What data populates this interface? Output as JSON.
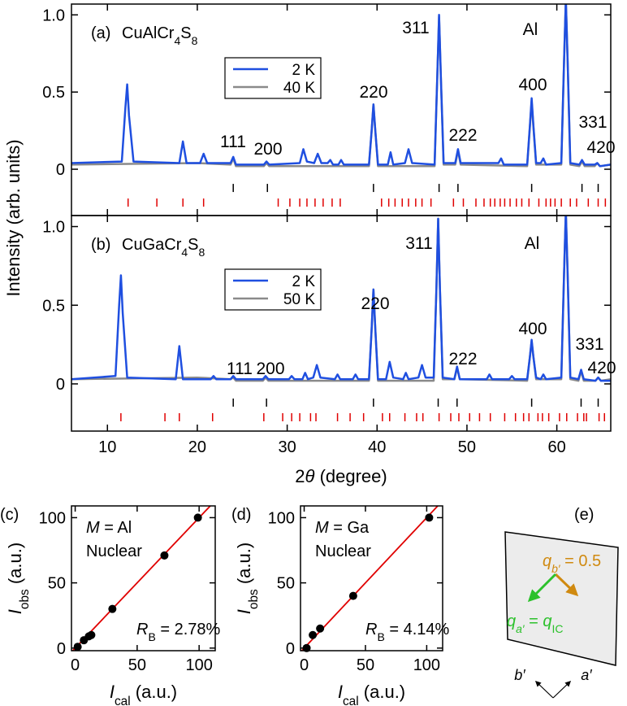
{
  "ylabel": "Intensity (arb. units)",
  "xlabel": [
    "2",
    "θ",
    " (degree)"
  ],
  "chart_data": [
    {
      "type": "spectrum",
      "panel_label": "(a)",
      "compound": [
        "CuAlCr",
        "4",
        "S",
        "8"
      ],
      "xlim": [
        6,
        66
      ],
      "xticks": [
        10,
        20,
        30,
        40,
        50,
        60
      ],
      "xtick_labels": false,
      "ylim": [
        -0.3,
        1.07
      ],
      "yticks": [
        0,
        0.5,
        {
          "value": 1,
          "label": "1.0"
        }
      ],
      "series": [
        {
          "name": "2 K",
          "color": "#1f4fe0",
          "x": [
            6,
            11.6,
            12.0,
            12.2,
            12.4,
            12.9,
            18.0,
            18.4,
            18.8,
            20.3,
            20.7,
            21.1,
            23.7,
            24.0,
            24.3,
            27.4,
            27.7,
            28.0,
            31.4,
            31.8,
            32.2,
            33.0,
            33.4,
            33.8,
            34.5,
            34.8,
            35.1,
            35.7,
            36.0,
            36.3,
            39.1,
            39.4,
            39.6,
            39.8,
            40.1,
            41.2,
            41.5,
            41.8,
            43.1,
            43.5,
            43.9,
            46.4,
            46.7,
            46.9,
            47.1,
            47.4,
            48.7,
            49.0,
            49.3,
            53.5,
            53.8,
            54.1,
            56.7,
            57.0,
            57.2,
            57.4,
            57.7,
            58.2,
            58.5,
            58.8,
            60.5,
            60.8,
            61.0,
            61.2,
            61.5,
            62.5,
            62.8,
            63.1,
            64.2,
            64.5,
            64.8,
            66
          ],
          "values": [
            0.04,
            0.05,
            0.4,
            0.55,
            0.35,
            0.05,
            0.04,
            0.18,
            0.04,
            0.04,
            0.1,
            0.04,
            0.04,
            0.08,
            0.03,
            0.03,
            0.05,
            0.03,
            0.04,
            0.13,
            0.05,
            0.04,
            0.1,
            0.04,
            0.04,
            0.06,
            0.03,
            0.03,
            0.06,
            0.03,
            0.03,
            0.25,
            0.42,
            0.25,
            0.03,
            0.03,
            0.11,
            0.03,
            0.04,
            0.13,
            0.04,
            0.03,
            0.6,
            1.0,
            0.6,
            0.04,
            0.04,
            0.13,
            0.04,
            0.04,
            0.07,
            0.03,
            0.03,
            0.28,
            0.46,
            0.28,
            0.04,
            0.04,
            0.07,
            0.03,
            0.04,
            0.7,
            1.1,
            0.7,
            0.04,
            0.03,
            0.06,
            0.03,
            0.03,
            0.04,
            0.02,
            0.03
          ]
        },
        {
          "name": "40 K",
          "color": "#8a8a8a",
          "x": [
            6,
            20,
            23.7,
            24.0,
            24.3,
            27.4,
            27.7,
            28.0,
            39.1,
            39.4,
            39.6,
            39.8,
            40.1,
            46.4,
            46.7,
            46.9,
            47.1,
            47.4,
            48.7,
            49.0,
            49.3,
            56.7,
            57.0,
            57.2,
            57.4,
            57.7,
            60.5,
            60.8,
            61.0,
            61.2,
            61.5,
            62.5,
            62.8,
            63.1,
            64.2,
            64.5,
            64.8,
            66
          ],
          "values": [
            0.03,
            0.04,
            0.03,
            0.07,
            0.02,
            0.02,
            0.04,
            0.02,
            0.02,
            0.25,
            0.42,
            0.25,
            0.02,
            0.02,
            0.6,
            0.99,
            0.6,
            0.03,
            0.03,
            0.12,
            0.03,
            0.02,
            0.27,
            0.44,
            0.27,
            0.03,
            0.03,
            0.7,
            1.1,
            0.7,
            0.03,
            0.02,
            0.05,
            0.02,
            0.02,
            0.04,
            0.02,
            0.03
          ]
        }
      ],
      "reflections": [
        {
          "color": "#000000",
          "positions": [
            24.0,
            27.8,
            39.6,
            46.9,
            49.0,
            57.2,
            62.8,
            64.6
          ]
        },
        {
          "color": "#e00000",
          "positions": [
            12.3,
            15.5,
            18.4,
            20.7,
            29.0,
            30.3,
            31.4,
            32.2,
            33.1,
            34.0,
            35.0,
            35.9,
            40.5,
            41.3,
            42.0,
            42.8,
            43.5,
            44.3,
            45.0,
            46.0,
            48.5,
            49.6,
            51.0,
            51.9,
            52.6,
            53.1,
            53.7,
            54.2,
            54.8,
            55.5,
            56.1,
            56.9,
            58.0,
            58.8,
            59.3,
            59.8,
            60.5,
            61.5,
            62.2,
            63.5,
            64.6,
            65.4
          ]
        }
      ],
      "peak_labels": [
        "311",
        "Al",
        "220",
        "400",
        "111",
        "200",
        "222",
        "331",
        "420"
      ]
    },
    {
      "type": "spectrum",
      "panel_label": "(b)",
      "compound": [
        "CuGaCr",
        "4",
        "S",
        "8"
      ],
      "xlim": [
        6,
        66
      ],
      "xticks": [
        10,
        20,
        30,
        40,
        50,
        60
      ],
      "xtick_labels": true,
      "ylim": [
        -0.3,
        1.07
      ],
      "yticks": [
        0,
        0.5,
        {
          "value": 1,
          "label": "1.0"
        }
      ],
      "series": [
        {
          "name": "2 K",
          "color": "#1f4fe0",
          "x": [
            6,
            10.9,
            11.3,
            11.5,
            11.7,
            12.2,
            17.6,
            18.0,
            18.4,
            21.5,
            21.8,
            22.1,
            23.7,
            24.0,
            24.3,
            27.3,
            27.6,
            27.9,
            30.2,
            30.5,
            30.8,
            31.7,
            32.0,
            32.3,
            32.9,
            33.3,
            33.7,
            35.3,
            35.6,
            35.9,
            37.3,
            37.6,
            37.9,
            39.1,
            39.4,
            39.6,
            39.8,
            40.1,
            41.0,
            41.4,
            41.8,
            42.9,
            43.2,
            43.5,
            44.6,
            45.0,
            45.4,
            46.3,
            46.6,
            46.8,
            47.0,
            47.3,
            48.6,
            48.9,
            49.2,
            52.2,
            52.5,
            52.8,
            54.7,
            55.0,
            55.3,
            56.7,
            57.0,
            57.2,
            57.4,
            57.7,
            58.2,
            58.5,
            58.8,
            60.5,
            60.8,
            61.0,
            61.2,
            61.5,
            62.4,
            62.7,
            63.0,
            64.3,
            64.6,
            64.9,
            66
          ],
          "values": [
            0.03,
            0.05,
            0.5,
            0.69,
            0.45,
            0.04,
            0.03,
            0.24,
            0.03,
            0.03,
            0.05,
            0.03,
            0.03,
            0.05,
            0.03,
            0.03,
            0.05,
            0.03,
            0.03,
            0.05,
            0.03,
            0.03,
            0.07,
            0.03,
            0.04,
            0.12,
            0.04,
            0.03,
            0.06,
            0.03,
            0.03,
            0.06,
            0.03,
            0.03,
            0.35,
            0.6,
            0.35,
            0.03,
            0.03,
            0.14,
            0.04,
            0.03,
            0.07,
            0.03,
            0.04,
            0.12,
            0.04,
            0.04,
            0.6,
            1.05,
            0.6,
            0.04,
            0.03,
            0.11,
            0.03,
            0.03,
            0.06,
            0.03,
            0.03,
            0.05,
            0.03,
            0.03,
            0.17,
            0.28,
            0.17,
            0.04,
            0.03,
            0.06,
            0.03,
            0.04,
            0.7,
            1.1,
            0.7,
            0.04,
            0.03,
            0.09,
            0.03,
            0.02,
            0.04,
            0.02,
            0.02
          ]
        },
        {
          "name": "50 K",
          "color": "#8a8a8a",
          "x": [
            6,
            20,
            23.7,
            24.0,
            24.3,
            27.3,
            27.6,
            27.9,
            39.1,
            39.4,
            39.6,
            39.8,
            40.1,
            46.3,
            46.6,
            46.8,
            47.0,
            47.3,
            48.6,
            48.9,
            49.2,
            56.7,
            57.0,
            57.2,
            57.4,
            57.7,
            60.5,
            60.8,
            61.0,
            61.2,
            61.5,
            62.4,
            62.7,
            63.0,
            64.3,
            64.6,
            64.9,
            66
          ],
          "values": [
            0.03,
            0.04,
            0.03,
            0.04,
            0.02,
            0.02,
            0.04,
            0.02,
            0.02,
            0.35,
            0.6,
            0.35,
            0.02,
            0.02,
            0.6,
            1.05,
            0.6,
            0.03,
            0.03,
            0.1,
            0.03,
            0.02,
            0.17,
            0.27,
            0.17,
            0.03,
            0.03,
            0.7,
            1.1,
            0.7,
            0.03,
            0.02,
            0.08,
            0.02,
            0.02,
            0.04,
            0.02,
            0.03
          ]
        }
      ],
      "reflections": [
        {
          "color": "#000000",
          "positions": [
            24.0,
            27.7,
            39.6,
            46.8,
            48.9,
            57.2,
            62.7,
            64.6
          ]
        },
        {
          "color": "#e00000",
          "positions": [
            11.5,
            16.4,
            18.0,
            21.7,
            27.4,
            29.5,
            30.5,
            31.4,
            32.6,
            33.2,
            35.6,
            37.0,
            38.5,
            40.6,
            41.4,
            43.1,
            44.4,
            45.1,
            46.9,
            48.2,
            49.1,
            50.3,
            51.4,
            52.6,
            54.2,
            55.4,
            56.3,
            56.9,
            57.9,
            58.4,
            59.1,
            60.3,
            61.1,
            62.3,
            63.0,
            63.3,
            64.7,
            65.3
          ]
        }
      ],
      "peak_labels": [
        "311",
        "Al",
        "220",
        "400",
        "111",
        "200",
        "222",
        "331",
        "420"
      ]
    },
    {
      "type": "scatter",
      "panel_label": "(c)",
      "element": [
        "M",
        " = Al"
      ],
      "note": "Nuclear",
      "rb": [
        "R",
        "B",
        " = 2.78%"
      ],
      "xlabel": [
        "I",
        "cal",
        " (a.u.)"
      ],
      "ylabel": [
        "I",
        "obs",
        " (a.u.)"
      ],
      "xlim": [
        -3,
        113
      ],
      "xticks": [
        0,
        50,
        100
      ],
      "ylim": [
        -2,
        109
      ],
      "yticks": [
        0,
        50,
        100
      ],
      "color": "#000000",
      "x": [
        2,
        7,
        11,
        13,
        30,
        72,
        99
      ],
      "values": [
        1,
        6,
        9,
        10,
        30,
        71,
        100
      ],
      "errors": [
        0,
        0,
        0,
        0,
        0,
        3,
        0
      ],
      "fit": {
        "color": "#e00000",
        "x": [
          -3,
          113
        ],
        "values": [
          -3,
          113
        ]
      }
    },
    {
      "type": "scatter",
      "panel_label": "(d)",
      "element": [
        "M",
        " = Ga"
      ],
      "note": "Nuclear",
      "rb": [
        "R",
        "B",
        " = 4.14%"
      ],
      "xlabel": [
        "I",
        "cal",
        " (a.u.)"
      ],
      "ylabel": [
        "I",
        "obs",
        " (a.u.)"
      ],
      "xlim": [
        -3,
        113
      ],
      "xticks": [
        0,
        50,
        100
      ],
      "ylim": [
        -2,
        109
      ],
      "yticks": [
        0,
        50,
        100
      ],
      "color": "#000000",
      "x": [
        2,
        7,
        13,
        40,
        102
      ],
      "values": [
        0,
        10,
        15,
        40,
        100
      ],
      "errors": [
        0,
        0,
        0,
        0,
        0
      ],
      "fit": {
        "color": "#e00000",
        "x": [
          -3,
          113
        ],
        "values": [
          -3,
          113
        ]
      }
    }
  ],
  "diagram": {
    "panel_label": "(e)",
    "qb": [
      "q",
      "b′",
      " = 0.5"
    ],
    "qa": [
      "q",
      "a′",
      " = ",
      "q",
      "IC"
    ],
    "b_axis": "b′",
    "a_axis": "a′"
  }
}
